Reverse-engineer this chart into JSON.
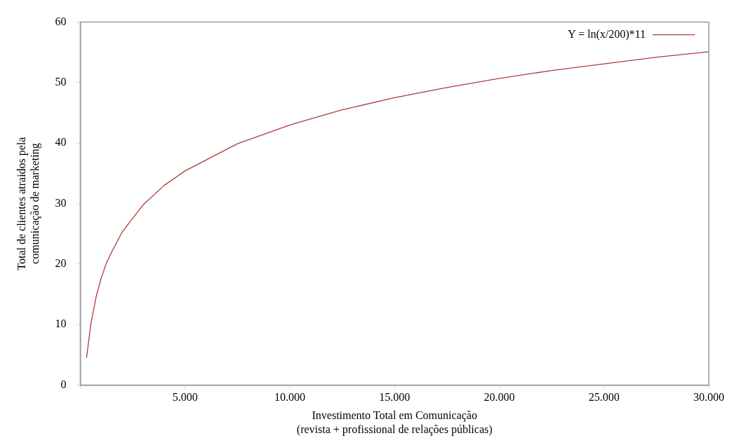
{
  "chart_data": {
    "type": "line",
    "xlabel": "Investimento Total em Comunicação\n(revista + profissional de relações públicas)",
    "ylabel": "Total de clientes atraidos pela\ncomunicação de marketing",
    "x": [
      300,
      500,
      750,
      1000,
      1250,
      1500,
      2000,
      3000,
      4000,
      5000,
      7500,
      10000,
      12500,
      15000,
      17500,
      20000,
      22500,
      25000,
      27500,
      30000
    ],
    "series": [
      {
        "name": "Y = ln(x/200)*11",
        "color": "#b03a3a",
        "values": [
          4.5,
          10,
          14.5,
          17.7,
          20.2,
          22,
          25.3,
          29.8,
          33,
          35.4,
          39.9,
          43,
          45.5,
          47.5,
          49.2,
          50.7,
          52,
          53.1,
          54.2,
          55.1
        ]
      }
    ],
    "xlim": [
      0,
      30000
    ],
    "xticks": [
      {
        "value": 0,
        "label": null
      },
      {
        "value": 5000,
        "label": "5.000"
      },
      {
        "value": 10000,
        "label": "10.000"
      },
      {
        "value": 15000,
        "label": "15.000"
      },
      {
        "value": 20000,
        "label": "20.000"
      },
      {
        "value": 25000,
        "label": "25.000"
      },
      {
        "value": 30000,
        "label": "30.000"
      }
    ],
    "ylim": [
      0,
      60
    ],
    "yticks": [
      0,
      10,
      20,
      30,
      40,
      50,
      60
    ],
    "grid": false,
    "legend": "top right",
    "marker": "none",
    "line_style": "solid"
  }
}
